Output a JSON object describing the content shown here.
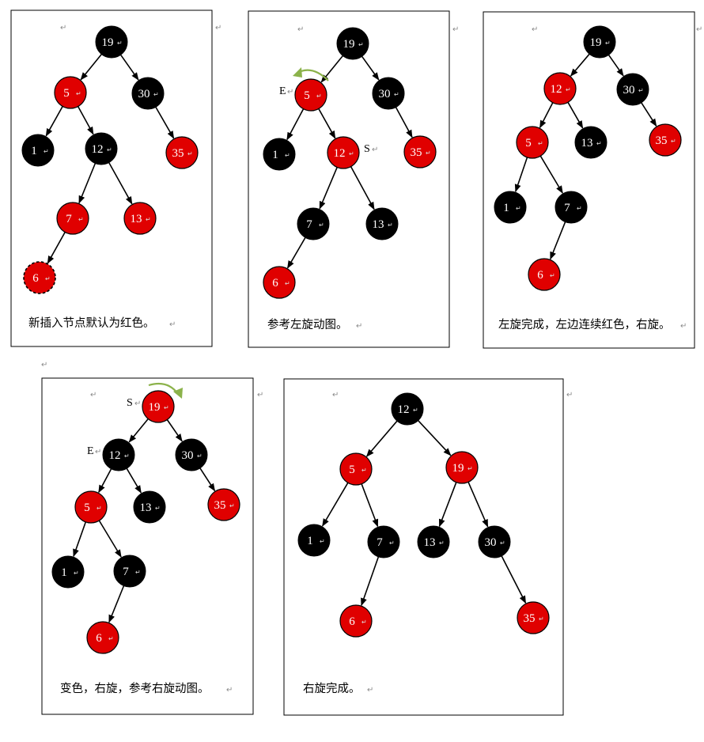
{
  "colors": {
    "black_node": "#000000",
    "red_node": "#e00000",
    "rotation_arrow": "#8bb24a"
  },
  "para_mark": "↵",
  "panels": [
    {
      "caption": "新插入节点默认为红色。",
      "nodes": [
        {
          "id": "19",
          "label": "19",
          "color": "black"
        },
        {
          "id": "5",
          "label": "5",
          "color": "red"
        },
        {
          "id": "30",
          "label": "30",
          "color": "black"
        },
        {
          "id": "1",
          "label": "1",
          "color": "black"
        },
        {
          "id": "12",
          "label": "12",
          "color": "black"
        },
        {
          "id": "35",
          "label": "35",
          "color": "red"
        },
        {
          "id": "7",
          "label": "7",
          "color": "red"
        },
        {
          "id": "13",
          "label": "13",
          "color": "red"
        },
        {
          "id": "6",
          "label": "6",
          "color": "red",
          "new_node": true
        }
      ],
      "edges": [
        [
          "19",
          "5"
        ],
        [
          "19",
          "30"
        ],
        [
          "5",
          "1"
        ],
        [
          "5",
          "12"
        ],
        [
          "30",
          "35"
        ],
        [
          "12",
          "7"
        ],
        [
          "12",
          "13"
        ],
        [
          "7",
          "6"
        ]
      ],
      "labels": [],
      "rotation": null
    },
    {
      "caption": "参考左旋动图。",
      "nodes": [
        {
          "id": "19",
          "label": "19",
          "color": "black"
        },
        {
          "id": "5",
          "label": "5",
          "color": "red"
        },
        {
          "id": "30",
          "label": "30",
          "color": "black"
        },
        {
          "id": "1",
          "label": "1",
          "color": "black"
        },
        {
          "id": "12",
          "label": "12",
          "color": "red"
        },
        {
          "id": "35",
          "label": "35",
          "color": "red"
        },
        {
          "id": "7",
          "label": "7",
          "color": "black"
        },
        {
          "id": "13",
          "label": "13",
          "color": "black"
        },
        {
          "id": "6",
          "label": "6",
          "color": "red"
        }
      ],
      "edges": [
        [
          "19",
          "5"
        ],
        [
          "19",
          "30"
        ],
        [
          "5",
          "1"
        ],
        [
          "5",
          "12"
        ],
        [
          "30",
          "35"
        ],
        [
          "12",
          "7"
        ],
        [
          "12",
          "13"
        ],
        [
          "7",
          "6"
        ]
      ],
      "labels": [
        {
          "text": "E",
          "node": "5",
          "side": "left"
        },
        {
          "text": "S",
          "node": "12",
          "side": "right"
        }
      ],
      "rotation": "left"
    },
    {
      "caption": "左旋完成，左边连续红色，右旋。",
      "nodes": [
        {
          "id": "19",
          "label": "19",
          "color": "black"
        },
        {
          "id": "12",
          "label": "12",
          "color": "red"
        },
        {
          "id": "30",
          "label": "30",
          "color": "black"
        },
        {
          "id": "5",
          "label": "5",
          "color": "red"
        },
        {
          "id": "13",
          "label": "13",
          "color": "black"
        },
        {
          "id": "35",
          "label": "35",
          "color": "red"
        },
        {
          "id": "1",
          "label": "1",
          "color": "black"
        },
        {
          "id": "7",
          "label": "7",
          "color": "black"
        },
        {
          "id": "6",
          "label": "6",
          "color": "red"
        }
      ],
      "edges": [
        [
          "19",
          "12"
        ],
        [
          "19",
          "30"
        ],
        [
          "12",
          "5"
        ],
        [
          "12",
          "13"
        ],
        [
          "30",
          "35"
        ],
        [
          "5",
          "1"
        ],
        [
          "5",
          "7"
        ],
        [
          "7",
          "6"
        ]
      ],
      "labels": [],
      "rotation": null
    },
    {
      "caption": "变色，右旋，参考右旋动图。",
      "nodes": [
        {
          "id": "19",
          "label": "19",
          "color": "red"
        },
        {
          "id": "12",
          "label": "12",
          "color": "black"
        },
        {
          "id": "30",
          "label": "30",
          "color": "black"
        },
        {
          "id": "5",
          "label": "5",
          "color": "red"
        },
        {
          "id": "13",
          "label": "13",
          "color": "black"
        },
        {
          "id": "35",
          "label": "35",
          "color": "red"
        },
        {
          "id": "1",
          "label": "1",
          "color": "black"
        },
        {
          "id": "7",
          "label": "7",
          "color": "black"
        },
        {
          "id": "6",
          "label": "6",
          "color": "red"
        }
      ],
      "edges": [
        [
          "19",
          "12"
        ],
        [
          "19",
          "30"
        ],
        [
          "12",
          "5"
        ],
        [
          "12",
          "13"
        ],
        [
          "30",
          "35"
        ],
        [
          "5",
          "1"
        ],
        [
          "5",
          "7"
        ],
        [
          "7",
          "6"
        ]
      ],
      "labels": [
        {
          "text": "S",
          "node": "19",
          "side": "left"
        },
        {
          "text": "E",
          "node": "12",
          "side": "left"
        }
      ],
      "rotation": "right"
    },
    {
      "caption": "右旋完成。",
      "nodes": [
        {
          "id": "12",
          "label": "12",
          "color": "black"
        },
        {
          "id": "5",
          "label": "5",
          "color": "red"
        },
        {
          "id": "19",
          "label": "19",
          "color": "red"
        },
        {
          "id": "1",
          "label": "1",
          "color": "black"
        },
        {
          "id": "7",
          "label": "7",
          "color": "black"
        },
        {
          "id": "13",
          "label": "13",
          "color": "black"
        },
        {
          "id": "30",
          "label": "30",
          "color": "black"
        },
        {
          "id": "6",
          "label": "6",
          "color": "red"
        },
        {
          "id": "35",
          "label": "35",
          "color": "red"
        }
      ],
      "edges": [
        [
          "12",
          "5"
        ],
        [
          "12",
          "19"
        ],
        [
          "5",
          "1"
        ],
        [
          "5",
          "7"
        ],
        [
          "19",
          "13"
        ],
        [
          "19",
          "30"
        ],
        [
          "7",
          "6"
        ],
        [
          "30",
          "35"
        ]
      ],
      "labels": [],
      "rotation": null
    }
  ]
}
